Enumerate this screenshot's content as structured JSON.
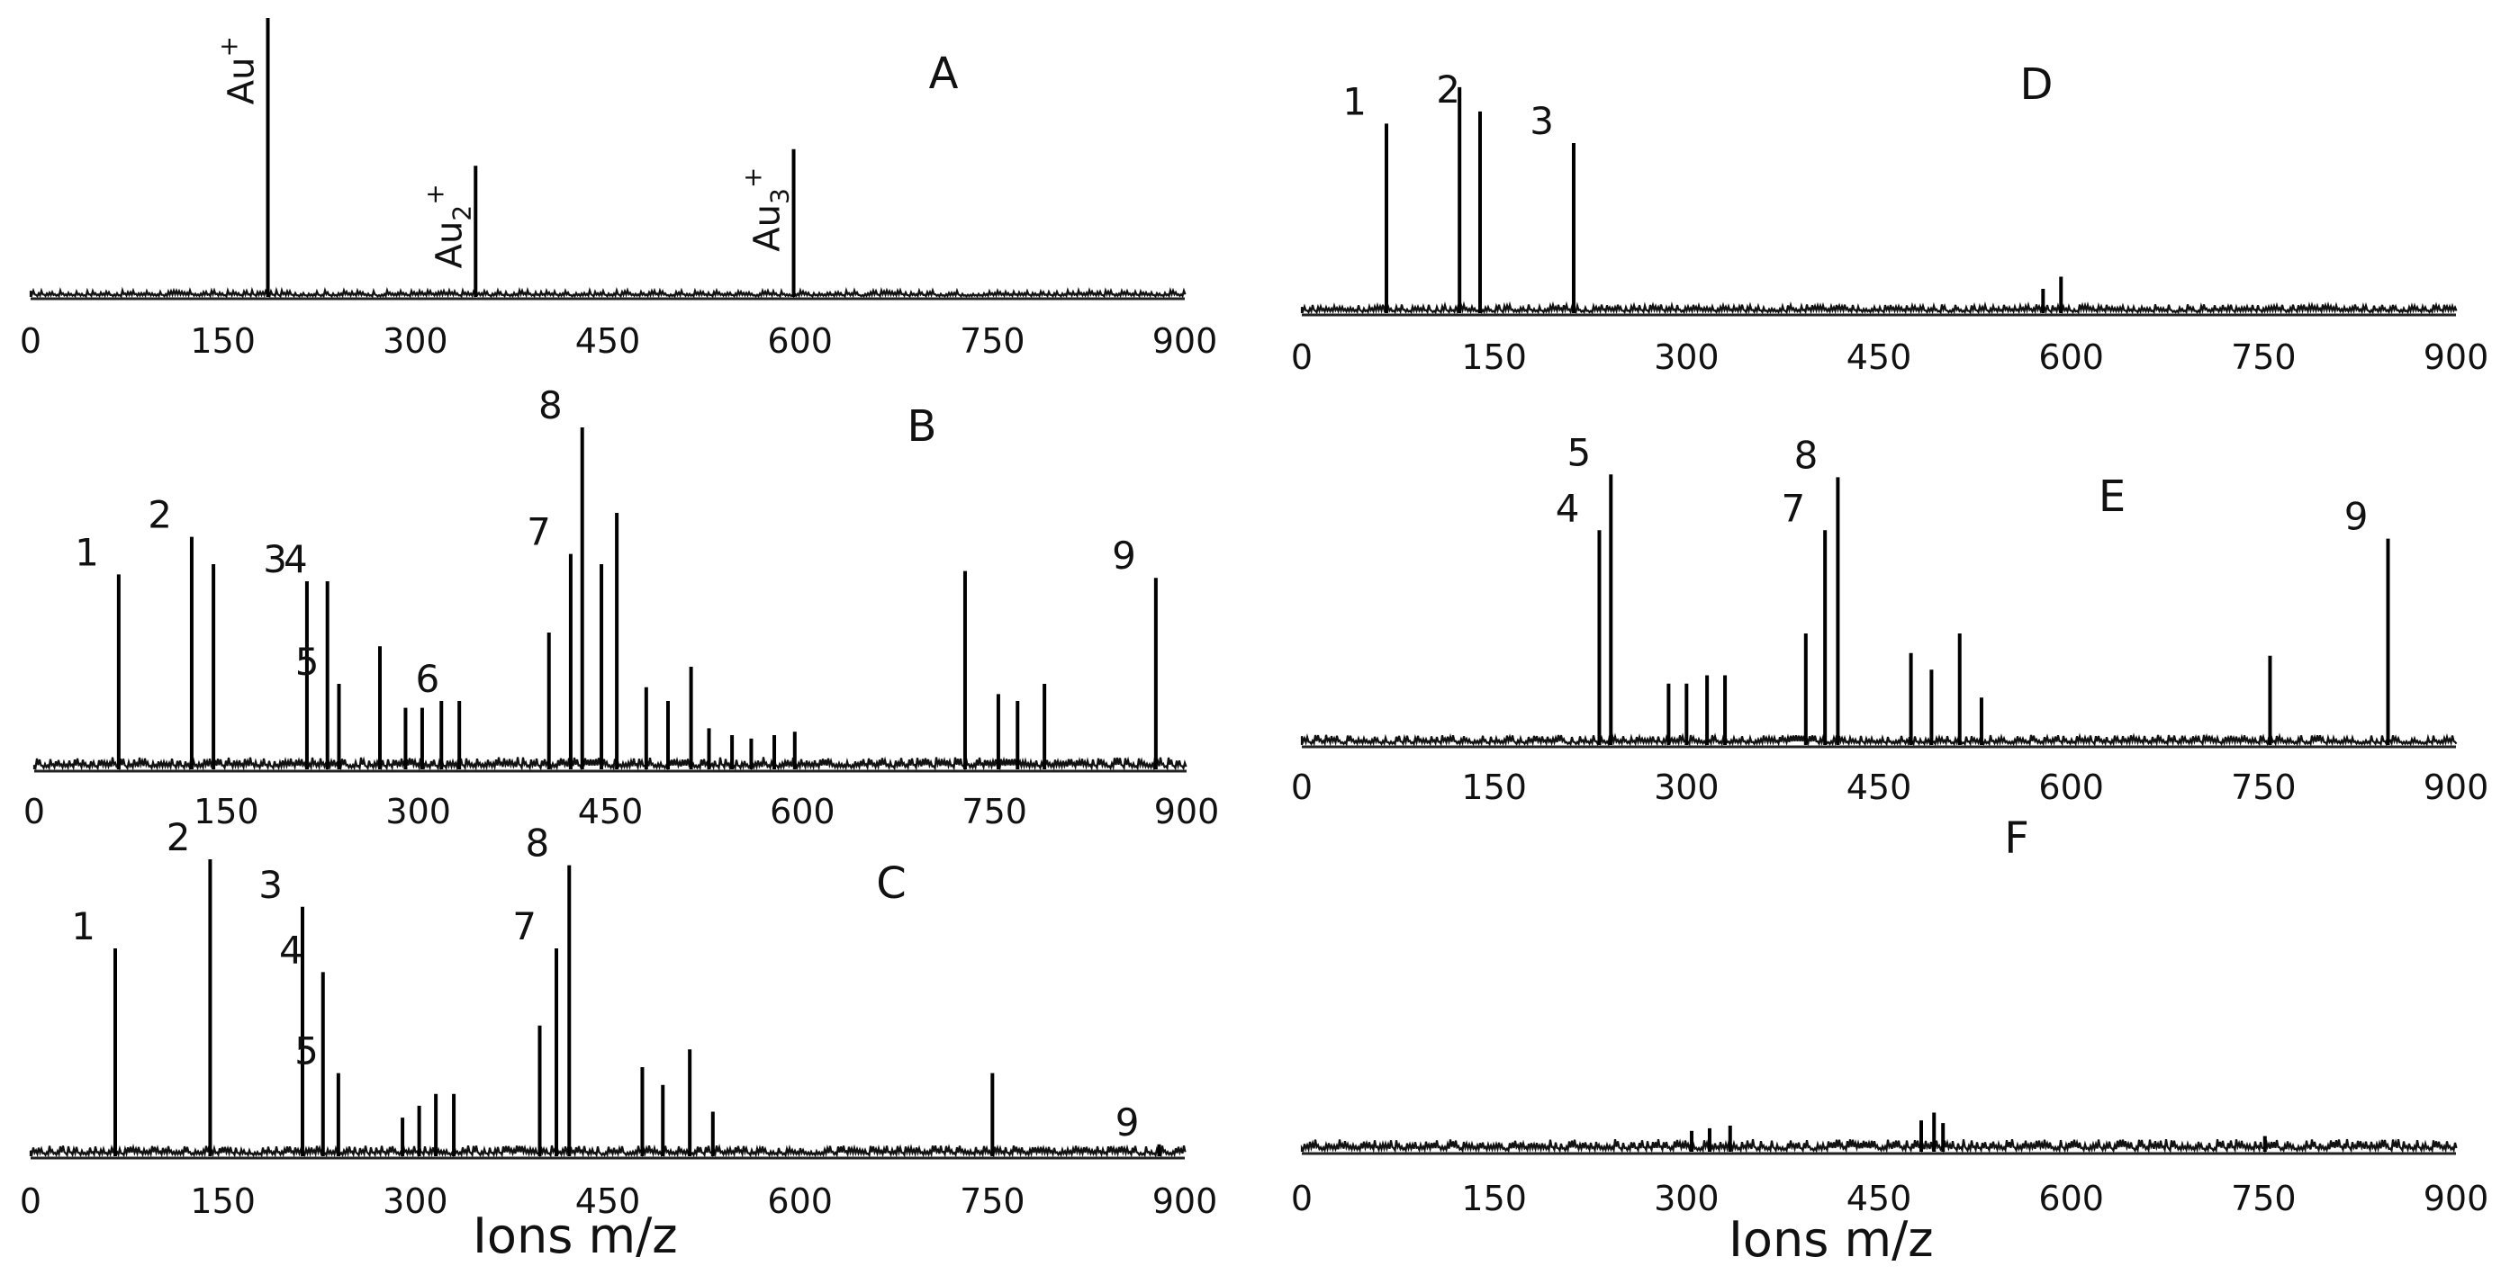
{
  "chart_data": [
    {
      "type": "bar",
      "panel": "A",
      "xlim": [
        0,
        900
      ],
      "xticks": [
        0,
        150,
        300,
        450,
        600,
        750,
        900
      ],
      "peaks": [
        {
          "x": 185,
          "y": 1.0,
          "ion": [
            "Au",
            "",
            "+"
          ]
        },
        {
          "x": 347,
          "y": 0.47,
          "ion": [
            "Au",
            "2",
            "+"
          ]
        },
        {
          "x": 595,
          "y": 0.53,
          "ion": [
            "Au",
            "3",
            "+"
          ]
        }
      ],
      "noise": 0.02
    },
    {
      "type": "bar",
      "panel": "B",
      "xlim": [
        0,
        900
      ],
      "xticks": [
        0,
        150,
        300,
        450,
        600,
        750,
        900
      ],
      "peaks": [
        {
          "x": 66,
          "y": 0.57,
          "label": "1"
        },
        {
          "x": 123,
          "y": 0.68,
          "label": "2"
        },
        {
          "x": 140,
          "y": 0.6
        },
        {
          "x": 213,
          "y": 0.55,
          "label": "3"
        },
        {
          "x": 229,
          "y": 0.55,
          "label": "4"
        },
        {
          "x": 238,
          "y": 0.25,
          "label": "5"
        },
        {
          "x": 270,
          "y": 0.36
        },
        {
          "x": 290,
          "y": 0.18
        },
        {
          "x": 303,
          "y": 0.18
        },
        {
          "x": 318,
          "y": 0.2
        },
        {
          "x": 332,
          "y": 0.2,
          "label": "6"
        },
        {
          "x": 402,
          "y": 0.4
        },
        {
          "x": 419,
          "y": 0.63,
          "label": "7"
        },
        {
          "x": 428,
          "y": 1.0,
          "label": "8"
        },
        {
          "x": 443,
          "y": 0.6
        },
        {
          "x": 455,
          "y": 0.75
        },
        {
          "x": 478,
          "y": 0.24
        },
        {
          "x": 495,
          "y": 0.2
        },
        {
          "x": 513,
          "y": 0.3
        },
        {
          "x": 527,
          "y": 0.12
        },
        {
          "x": 545,
          "y": 0.1
        },
        {
          "x": 560,
          "y": 0.09
        },
        {
          "x": 578,
          "y": 0.1
        },
        {
          "x": 594,
          "y": 0.11
        },
        {
          "x": 727,
          "y": 0.58
        },
        {
          "x": 753,
          "y": 0.22
        },
        {
          "x": 768,
          "y": 0.2
        },
        {
          "x": 789,
          "y": 0.25
        },
        {
          "x": 876,
          "y": 0.56,
          "label": "9"
        }
      ],
      "noise": 0.03
    },
    {
      "type": "bar",
      "panel": "C",
      "xlim": [
        0,
        900
      ],
      "xticks": [
        0,
        150,
        300,
        450,
        600,
        750,
        900
      ],
      "peaks": [
        {
          "x": 66,
          "y": 0.7,
          "label": "1"
        },
        {
          "x": 140,
          "y": 1.0,
          "label": "2"
        },
        {
          "x": 212,
          "y": 0.84,
          "label": "3"
        },
        {
          "x": 228,
          "y": 0.62,
          "label": "4"
        },
        {
          "x": 240,
          "y": 0.28,
          "label": "5"
        },
        {
          "x": 290,
          "y": 0.13
        },
        {
          "x": 303,
          "y": 0.17
        },
        {
          "x": 316,
          "y": 0.21
        },
        {
          "x": 330,
          "y": 0.21
        },
        {
          "x": 397,
          "y": 0.44
        },
        {
          "x": 410,
          "y": 0.7,
          "label": "7"
        },
        {
          "x": 420,
          "y": 0.98,
          "label": "8"
        },
        {
          "x": 477,
          "y": 0.3
        },
        {
          "x": 493,
          "y": 0.24
        },
        {
          "x": 514,
          "y": 0.36
        },
        {
          "x": 532,
          "y": 0.15
        },
        {
          "x": 750,
          "y": 0.28
        },
        {
          "x": 880,
          "y": 0.04,
          "label": "9"
        }
      ],
      "noise": 0.03
    },
    {
      "type": "bar",
      "panel": "D",
      "xlim": [
        0,
        900
      ],
      "xticks": [
        0,
        150,
        300,
        450,
        600,
        750,
        900
      ],
      "peaks": [
        {
          "x": 66,
          "y": 0.78,
          "label": "1"
        },
        {
          "x": 123,
          "y": 0.93
        },
        {
          "x": 139,
          "y": 0.83,
          "label": "2"
        },
        {
          "x": 212,
          "y": 0.7,
          "label": "3"
        },
        {
          "x": 578,
          "y": 0.1
        },
        {
          "x": 592,
          "y": 0.15
        }
      ],
      "noise": 0.03
    },
    {
      "type": "bar",
      "panel": "E",
      "xlim": [
        0,
        900
      ],
      "xticks": [
        0,
        150,
        300,
        450,
        600,
        750,
        900
      ],
      "peaks": [
        {
          "x": 232,
          "y": 0.77,
          "label": "4"
        },
        {
          "x": 241,
          "y": 0.97,
          "label": "5"
        },
        {
          "x": 286,
          "y": 0.22
        },
        {
          "x": 300,
          "y": 0.22
        },
        {
          "x": 316,
          "y": 0.25
        },
        {
          "x": 330,
          "y": 0.25
        },
        {
          "x": 393,
          "y": 0.4
        },
        {
          "x": 408,
          "y": 0.77,
          "label": "7"
        },
        {
          "x": 418,
          "y": 0.96,
          "label": "8"
        },
        {
          "x": 475,
          "y": 0.33
        },
        {
          "x": 491,
          "y": 0.27
        },
        {
          "x": 513,
          "y": 0.4
        },
        {
          "x": 530,
          "y": 0.17
        },
        {
          "x": 755,
          "y": 0.32
        },
        {
          "x": 847,
          "y": 0.74,
          "label": "9"
        }
      ],
      "noise": 0.03
    },
    {
      "type": "bar",
      "panel": "F",
      "xlim": [
        0,
        900
      ],
      "xticks": [
        0,
        150,
        300,
        450,
        600,
        750,
        900
      ],
      "peaks": [
        {
          "x": 304,
          "y": 0.08
        },
        {
          "x": 318,
          "y": 0.09
        },
        {
          "x": 334,
          "y": 0.1
        },
        {
          "x": 483,
          "y": 0.12
        },
        {
          "x": 493,
          "y": 0.15
        },
        {
          "x": 500,
          "y": 0.11
        },
        {
          "x": 751,
          "y": 0.06
        }
      ],
      "noise": 0.04
    }
  ],
  "xlabel_left": "Ions m/z",
  "xlabel_right": "Ions m/z"
}
